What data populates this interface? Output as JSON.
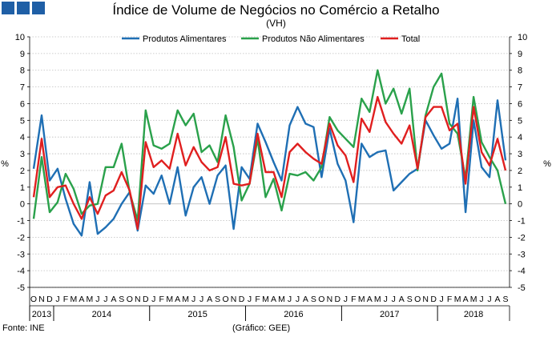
{
  "header": {
    "title": "Índice de Volume de Negócios no Comércio a Retalho",
    "subtitle": "(VH)",
    "logo": "gee-logo-squares"
  },
  "footer": {
    "source": "Fonte: INE",
    "credit": "(Gráfico: GEE)"
  },
  "chart_data": {
    "type": "line",
    "title": "Índice de Volume de Negócios no Comércio a Retalho",
    "subtitle": "(VH)",
    "ylabel_left": "%",
    "ylabel_right": "%",
    "ylim": [
      -5,
      10
    ],
    "yticks": [
      -5,
      -4,
      -3,
      -2,
      -1,
      0,
      1,
      2,
      3,
      4,
      5,
      6,
      7,
      8,
      9,
      10
    ],
    "grid": true,
    "legend_position": "top",
    "months": [
      "O",
      "N",
      "D",
      "J",
      "F",
      "M",
      "A",
      "M",
      "J",
      "J",
      "A",
      "S",
      "O",
      "N",
      "D",
      "J",
      "F",
      "M",
      "A",
      "M",
      "J",
      "J",
      "A",
      "S",
      "O",
      "N",
      "D",
      "J",
      "F",
      "M",
      "A",
      "M",
      "J",
      "J",
      "A",
      "S",
      "O",
      "N",
      "D",
      "J",
      "F",
      "M",
      "A",
      "M",
      "J",
      "J",
      "A",
      "S",
      "O",
      "N",
      "D",
      "J",
      "F",
      "M",
      "A",
      "M",
      "J",
      "J",
      "A",
      "S"
    ],
    "years": [
      {
        "label": "2013",
        "start": 0,
        "count": 3
      },
      {
        "label": "2014",
        "start": 3,
        "count": 12
      },
      {
        "label": "2015",
        "start": 15,
        "count": 12
      },
      {
        "label": "2016",
        "start": 27,
        "count": 12
      },
      {
        "label": "2017",
        "start": 39,
        "count": 12
      },
      {
        "label": "2018",
        "start": 51,
        "count": 9
      }
    ],
    "series": [
      {
        "name": "Produtos Alimentares",
        "color": "#1f6fb4",
        "values": [
          2.1,
          5.3,
          1.4,
          2.1,
          0.3,
          -1.2,
          -1.9,
          1.3,
          -1.8,
          -1.4,
          -0.9,
          0.0,
          0.7,
          -1.6,
          1.1,
          0.6,
          1.7,
          0.0,
          2.2,
          -0.7,
          1.0,
          1.6,
          0.0,
          1.7,
          2.3,
          -1.5,
          2.2,
          1.5,
          4.8,
          3.7,
          2.5,
          1.4,
          4.7,
          5.8,
          4.8,
          4.6,
          1.6,
          4.5,
          2.4,
          1.4,
          -1.1,
          3.6,
          2.8,
          3.1,
          3.2,
          0.8,
          1.3,
          1.8,
          2.1,
          5.0,
          4.1,
          3.3,
          3.6,
          6.3,
          -0.5,
          5.0,
          2.2,
          1.6,
          6.2,
          2.6
        ]
      },
      {
        "name": "Produtos Não Alimentares",
        "color": "#2aa14b",
        "values": [
          -0.9,
          2.8,
          -0.5,
          0.1,
          1.8,
          0.9,
          -0.6,
          -0.1,
          0.0,
          2.2,
          2.2,
          3.6,
          0.7,
          -1.0,
          5.6,
          3.5,
          3.3,
          3.6,
          5.6,
          4.7,
          5.4,
          3.1,
          3.5,
          2.5,
          5.3,
          3.4,
          0.2,
          1.2,
          3.9,
          0.4,
          1.5,
          -0.4,
          1.8,
          1.7,
          1.9,
          1.4,
          2.2,
          5.2,
          4.4,
          3.9,
          3.4,
          6.3,
          5.5,
          8.0,
          6.0,
          6.9,
          5.4,
          6.9,
          2.0,
          5.3,
          7.0,
          7.8,
          4.8,
          4.2,
          1.5,
          6.4,
          3.7,
          2.8,
          2.0,
          0.0
        ]
      },
      {
        "name": "Total",
        "color": "#e01f1f",
        "values": [
          0.4,
          3.9,
          0.4,
          1.0,
          1.1,
          0.0,
          -0.9,
          0.4,
          -0.6,
          0.5,
          0.8,
          1.9,
          0.8,
          -1.5,
          3.7,
          2.2,
          2.6,
          2.1,
          4.2,
          2.3,
          3.4,
          2.5,
          2.0,
          2.2,
          4.0,
          1.2,
          1.1,
          1.2,
          4.2,
          1.9,
          1.9,
          0.4,
          3.1,
          3.6,
          3.1,
          2.7,
          2.4,
          4.8,
          3.5,
          2.9,
          1.3,
          5.1,
          4.3,
          6.4,
          4.9,
          4.2,
          3.6,
          4.7,
          2.1,
          5.2,
          5.8,
          5.8,
          4.4,
          4.8,
          1.2,
          5.8,
          3.1,
          2.3,
          3.9,
          2.0
        ]
      }
    ]
  }
}
